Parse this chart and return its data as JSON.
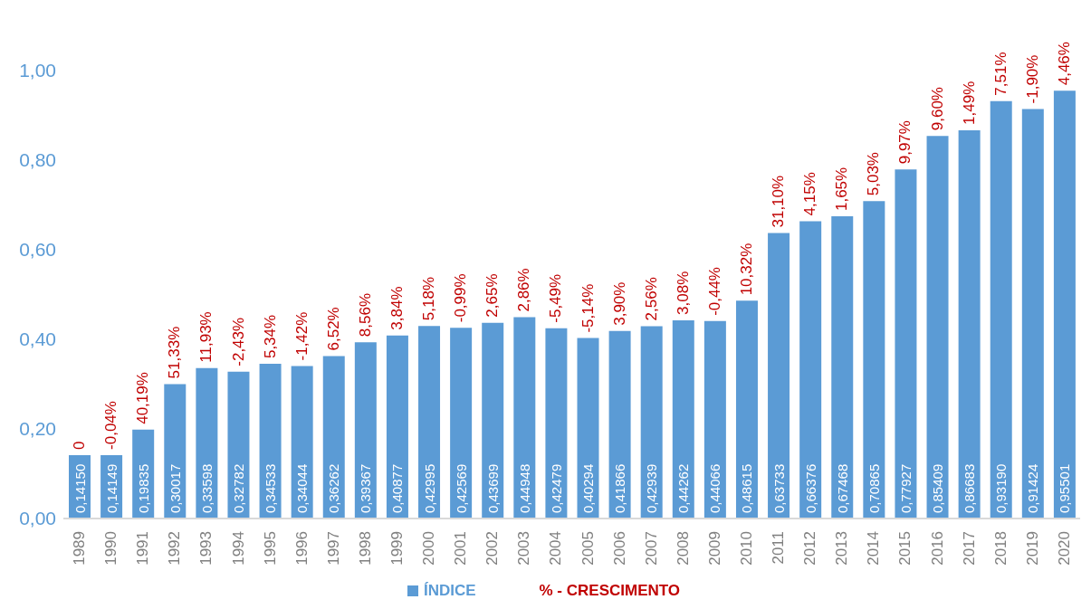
{
  "chart_data": {
    "type": "bar",
    "categories": [
      "1989",
      "1990",
      "1991",
      "1992",
      "1993",
      "1994",
      "1995",
      "1996",
      "1997",
      "1998",
      "1999",
      "2000",
      "2001",
      "2002",
      "2003",
      "2004",
      "2005",
      "2006",
      "2007",
      "2008",
      "2009",
      "2010",
      "2011",
      "2012",
      "2013",
      "2014",
      "2015",
      "2016",
      "2017",
      "2018",
      "2019",
      "2020"
    ],
    "series": [
      {
        "name": "ÍNDICE",
        "color": "#5b9bd5",
        "values": [
          0.1415,
          0.14149,
          0.19835,
          0.30017,
          0.33598,
          0.32782,
          0.34533,
          0.34044,
          0.36262,
          0.39367,
          0.40877,
          0.42995,
          0.42569,
          0.43699,
          0.44948,
          0.42479,
          0.40294,
          0.41866,
          0.42939,
          0.44262,
          0.44066,
          0.48615,
          0.63733,
          0.66376,
          0.67468,
          0.70865,
          0.77927,
          0.85409,
          0.86683,
          0.9319,
          0.91424,
          0.95501
        ],
        "value_labels": [
          "0,14150",
          "0,14149",
          "0,19835",
          "0,30017",
          "0,33598",
          "0,32782",
          "0,34533",
          "0,34044",
          "0,36262",
          "0,39367",
          "0,40877",
          "0,42995",
          "0,42569",
          "0,43699",
          "0,44948",
          "0,42479",
          "0,40294",
          "0,41866",
          "0,42939",
          "0,44262",
          "0,44066",
          "0,48615",
          "0,63733",
          "0,66376",
          "0,67468",
          "0,70865",
          "0,77927",
          "0,85409",
          "0,86683",
          "0,93190",
          "0,91424",
          "0,95501"
        ]
      },
      {
        "name": "% - CRESCIMENTO",
        "color": "#c00000",
        "type": "line",
        "values": [
          null,
          null,
          null,
          null,
          null,
          null,
          null,
          null,
          null,
          null,
          null,
          null,
          null,
          null,
          null,
          null,
          null,
          null,
          null,
          null,
          null,
          null,
          null,
          null,
          null,
          null,
          null,
          null,
          null,
          null,
          null,
          null
        ]
      }
    ],
    "annotations": [
      {
        "text": "0",
        "x": "1989",
        "y": 0.1415
      },
      {
        "text": "-0,04%",
        "x": "1990",
        "y": 0.14149
      },
      {
        "text": "40,19%",
        "x": "1991",
        "y": 0.19835
      },
      {
        "text": "51,33%",
        "x": "1992",
        "y": 0.30017
      },
      {
        "text": "11,93%",
        "x": "1993",
        "y": 0.33598
      },
      {
        "text": "-2,43%",
        "x": "1994",
        "y": 0.32782
      },
      {
        "text": "5,34%",
        "x": "1995",
        "y": 0.34533
      },
      {
        "text": "-1,42%",
        "x": "1996",
        "y": 0.34044
      },
      {
        "text": "6,52%",
        "x": "1997",
        "y": 0.36262
      },
      {
        "text": "8,56%",
        "x": "1998",
        "y": 0.39367
      },
      {
        "text": "3,84%",
        "x": "1999",
        "y": 0.40877
      },
      {
        "text": "5,18%",
        "x": "2000",
        "y": 0.42995
      },
      {
        "text": "-0,99%",
        "x": "2001",
        "y": 0.42569
      },
      {
        "text": "2,65%",
        "x": "2002",
        "y": 0.43699
      },
      {
        "text": "2,86%",
        "x": "2003",
        "y": 0.44948
      },
      {
        "text": "-5,49%",
        "x": "2004",
        "y": 0.42479
      },
      {
        "text": "-5,14%",
        "x": "2005",
        "y": 0.40294
      },
      {
        "text": "3,90%",
        "x": "2006",
        "y": 0.41866
      },
      {
        "text": "2,56%",
        "x": "2007",
        "y": 0.42939
      },
      {
        "text": "3,08%",
        "x": "2008",
        "y": 0.44262
      },
      {
        "text": "-0,44%",
        "x": "2009",
        "y": 0.44066
      },
      {
        "text": "10,32%",
        "x": "2010",
        "y": 0.48615
      },
      {
        "text": "31,10%",
        "x": "2011",
        "y": 0.63733
      },
      {
        "text": "4,15%",
        "x": "2012",
        "y": 0.66376
      },
      {
        "text": "1,65%",
        "x": "2013",
        "y": 0.67468
      },
      {
        "text": "5,03%",
        "x": "2014",
        "y": 0.70865
      },
      {
        "text": "9,97%",
        "x": "2015",
        "y": 0.77927
      },
      {
        "text": "9,60%",
        "x": "2016",
        "y": 0.85409
      },
      {
        "text": "1,49%",
        "x": "2017",
        "y": 0.86683
      },
      {
        "text": "7,51%",
        "x": "2018",
        "y": 0.9319
      },
      {
        "text": "-1,90%",
        "x": "2019",
        "y": 0.91424
      },
      {
        "text": "4,46%",
        "x": "2020",
        "y": 0.95501
      }
    ],
    "ylim": [
      0,
      1
    ],
    "yticks": [
      {
        "value": 0,
        "label": "0,00"
      },
      {
        "value": 0.2,
        "label": "0,20"
      },
      {
        "value": 0.4,
        "label": "0,40"
      },
      {
        "value": 0.6,
        "label": "0,60"
      },
      {
        "value": 0.8,
        "label": "0,80"
      },
      {
        "value": 1,
        "label": "1,00"
      }
    ],
    "grid": false,
    "legend": "bottom"
  }
}
